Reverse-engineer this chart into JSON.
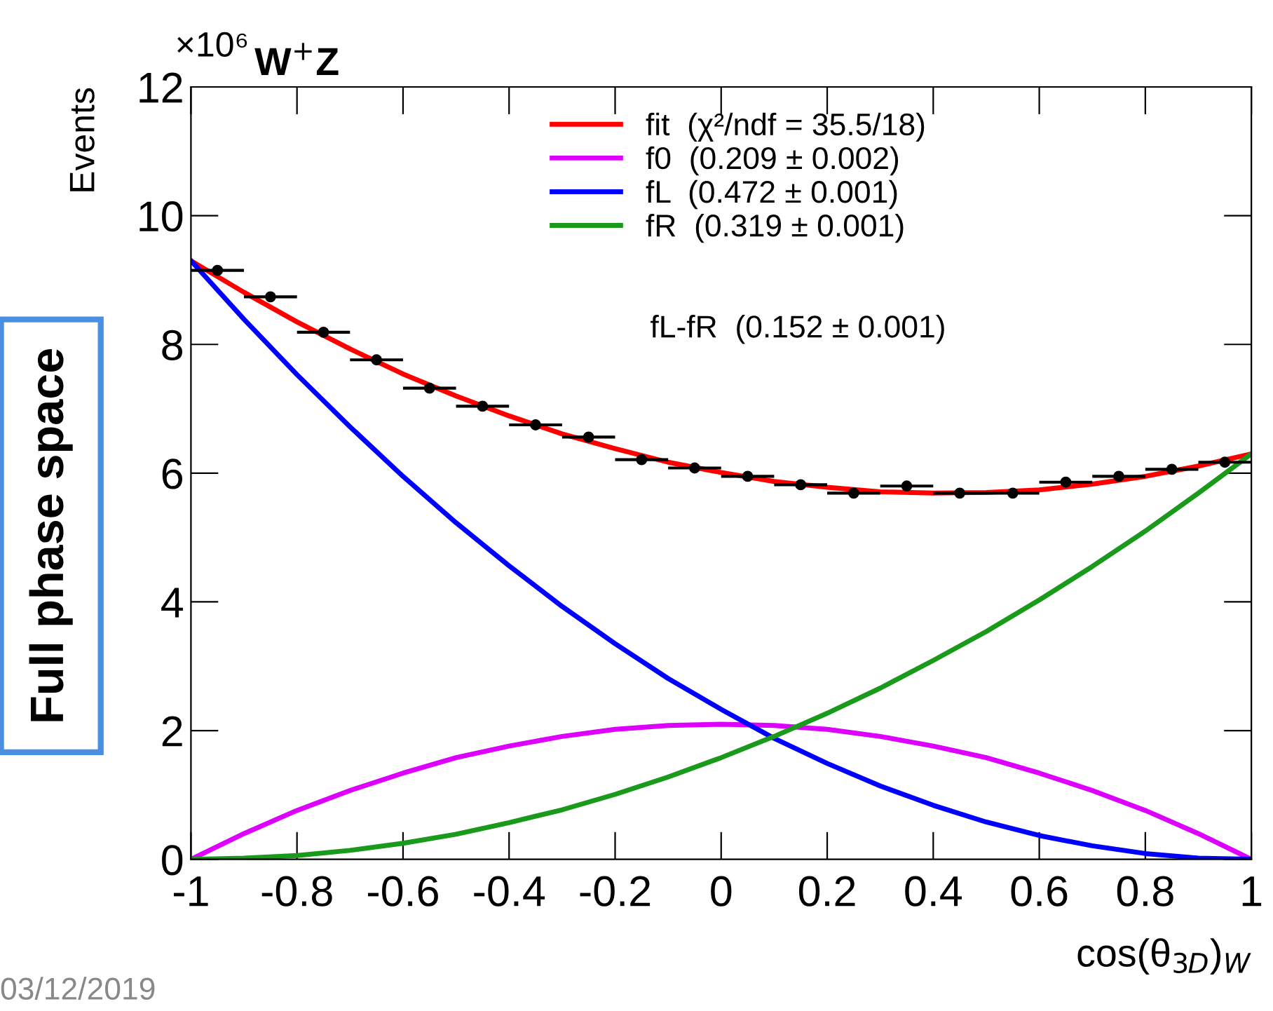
{
  "chart_data": {
    "type": "line",
    "title": "W$^{+}$Z",
    "ylabel": "Events",
    "xlabel": "cos(θ$_{3D}$)$_{W}$",
    "xlim": [
      -1,
      1
    ],
    "xticks": [
      -1,
      -0.8,
      -0.6,
      -0.4,
      -0.2,
      0,
      0.2,
      0.4,
      0.6,
      0.8,
      1
    ],
    "ylim": [
      0,
      12
    ],
    "yticks": [
      0,
      2,
      4,
      6,
      8,
      10,
      12
    ],
    "legend": "top",
    "grid": false,
    "annotations": [
      "×10⁶",
      "fL-fR  (0.152 ± 0.001)",
      "Full phase space",
      "03/12/2019"
    ],
    "series": [
      {
        "type": "scatter",
        "color": "#000000",
        "marker": "circle",
        "x": [
          -0.95,
          -0.85,
          -0.75,
          -0.65,
          -0.55,
          -0.45,
          -0.35,
          -0.25,
          -0.15,
          -0.05,
          0.05,
          0.15,
          0.25,
          0.35,
          0.45,
          0.55,
          0.65,
          0.75,
          0.85,
          0.95
        ],
        "values": [
          9.15,
          8.74,
          8.19,
          7.76,
          7.32,
          7.04,
          6.75,
          6.56,
          6.21,
          6.08,
          5.95,
          5.82,
          5.69,
          5.8,
          5.69,
          5.69,
          5.86,
          5.95,
          6.06,
          6.17
        ],
        "xerrors": [
          0.05,
          0.05,
          0.05,
          0.05,
          0.05,
          0.05,
          0.05,
          0.05,
          0.05,
          0.05,
          0.05,
          0.05,
          0.05,
          0.05,
          0.05,
          0.05,
          0.05,
          0.05,
          0.05,
          0.05
        ]
      },
      {
        "name": "fit  (χ²/ndf = 35.5/18)",
        "color": "#ff0000",
        "x": [
          -1,
          -0.9,
          -0.8,
          -0.7,
          -0.6,
          -0.5,
          -0.4,
          -0.3,
          -0.2,
          -0.1,
          0,
          0.1,
          0.2,
          0.3,
          0.4,
          0.5,
          0.6,
          0.7,
          0.8,
          0.9,
          1
        ],
        "values": [
          9.3,
          8.81,
          8.35,
          7.93,
          7.54,
          7.2,
          6.89,
          6.61,
          6.38,
          6.17,
          6.01,
          5.87,
          5.78,
          5.71,
          5.69,
          5.7,
          5.74,
          5.83,
          5.95,
          6.11,
          6.3
        ]
      },
      {
        "name": "f0  (0.209 ± 0.002)",
        "color": "#dd00ff",
        "x": [
          -1,
          -0.9,
          -0.8,
          -0.7,
          -0.6,
          -0.5,
          -0.4,
          -0.3,
          -0.2,
          -0.1,
          0,
          0.1,
          0.2,
          0.3,
          0.4,
          0.5,
          0.6,
          0.7,
          0.8,
          0.9,
          1
        ],
        "values": [
          0,
          0.4,
          0.76,
          1.07,
          1.34,
          1.58,
          1.76,
          1.91,
          2.02,
          2.08,
          2.1,
          2.08,
          2.02,
          1.91,
          1.76,
          1.58,
          1.34,
          1.07,
          0.76,
          0.4,
          0
        ]
      },
      {
        "name": "fL  (0.472 ± 0.001)",
        "color": "#0000ff",
        "x": [
          -1,
          -0.9,
          -0.8,
          -0.7,
          -0.6,
          -0.5,
          -0.4,
          -0.3,
          -0.2,
          -0.1,
          0,
          0.1,
          0.2,
          0.3,
          0.4,
          0.5,
          0.6,
          0.7,
          0.8,
          0.9,
          1
        ],
        "values": [
          9.3,
          8.39,
          7.53,
          6.72,
          5.95,
          5.23,
          4.56,
          3.93,
          3.35,
          2.81,
          2.33,
          1.88,
          1.49,
          1.14,
          0.84,
          0.58,
          0.37,
          0.21,
          0.09,
          0.02,
          0
        ]
      },
      {
        "name": "fR  (0.319 ± 0.001)",
        "color": "#1a9a1a",
        "x": [
          -1,
          -0.9,
          -0.8,
          -0.7,
          -0.6,
          -0.5,
          -0.4,
          -0.3,
          -0.2,
          -0.1,
          0,
          0.1,
          0.2,
          0.3,
          0.4,
          0.5,
          0.6,
          0.7,
          0.8,
          0.9,
          1
        ],
        "values": [
          0,
          0.02,
          0.06,
          0.14,
          0.25,
          0.39,
          0.57,
          0.77,
          1.01,
          1.28,
          1.58,
          1.91,
          2.27,
          2.66,
          3.09,
          3.54,
          4.03,
          4.55,
          5.1,
          5.69,
          6.3
        ]
      }
    ]
  }
}
